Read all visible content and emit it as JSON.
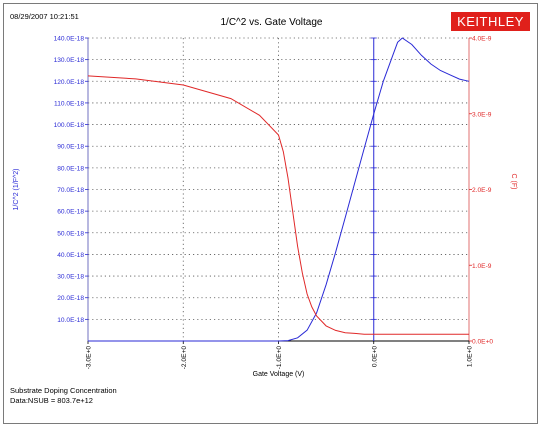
{
  "header": {
    "timestamp": "08/29/2007 10:21:51",
    "brand": "KEITHLEY"
  },
  "footer": {
    "line1": "Substrate Doping Concentration",
    "line2": "Data:NSUB = 803.7e+12"
  },
  "colors": {
    "left_series": "#2a2ad6",
    "right_series": "#e02828",
    "grid": "#555555",
    "zero_line": "#2a2ad6"
  },
  "chart_data": {
    "type": "line",
    "title": "1/C^2 vs. Gate Voltage",
    "xlabel": "Gate Voltage (V)",
    "ylabel_left": "1/C^2 (1/F^2)",
    "ylabel_right": "C (F)",
    "xlim": [
      -3,
      1
    ],
    "ylim_left": [
      0,
      1.4e-16
    ],
    "ylim_right": [
      0,
      4e-09
    ],
    "grid": true,
    "x_ticks": [
      -3,
      -2,
      -1,
      0,
      1
    ],
    "x_tick_labels": [
      "-3.0E+0",
      "-2.0E+0",
      "-1.0E+0",
      "0.0E+0",
      "1.0E+0"
    ],
    "y_left_ticks": [
      1e-17,
      2e-17,
      3e-17,
      4e-17,
      5e-17,
      6e-17,
      7e-17,
      8e-17,
      9e-17,
      1e-16,
      1.1e-16,
      1.2e-16,
      1.3e-16,
      1.4e-16
    ],
    "y_left_tick_labels": [
      "10.0E-18",
      "20.0E-18",
      "30.0E-18",
      "40.0E-18",
      "50.0E-18",
      "60.0E-18",
      "70.0E-18",
      "80.0E-18",
      "90.0E-18",
      "100.0E-18",
      "110.0E-18",
      "120.0E-18",
      "130.0E-18",
      "140.0E-18"
    ],
    "y_right_ticks": [
      0,
      1e-09,
      2e-09,
      3e-09,
      4e-09
    ],
    "y_right_tick_labels": [
      "0.0E+0",
      "1.0E-9",
      "2.0E-9",
      "3.0E-9",
      "4.0E-9"
    ],
    "series": [
      {
        "axis": "left",
        "x": [
          -3.0,
          -1.0,
          -0.9,
          -0.8,
          -0.7,
          -0.6,
          -0.5,
          -0.4,
          -0.3,
          -0.2,
          -0.1,
          0.0,
          0.1,
          0.2,
          0.25,
          0.3,
          0.4,
          0.5,
          0.6,
          0.7,
          0.8,
          0.9,
          1.0
        ],
        "y": [
          0,
          0,
          2e-19,
          1.5e-18,
          5e-18,
          1.3e-17,
          2.6e-17,
          4.1e-17,
          5.7e-17,
          7.3e-17,
          8.9e-17,
          1.05e-16,
          1.2e-16,
          1.32e-16,
          1.38e-16,
          1.4e-16,
          1.37e-16,
          1.32e-16,
          1.28e-16,
          1.25e-16,
          1.23e-16,
          1.21e-16,
          1.2e-16
        ]
      },
      {
        "axis": "right",
        "x": [
          -3.0,
          -2.5,
          -2.0,
          -1.5,
          -1.2,
          -1.0,
          -0.95,
          -0.9,
          -0.85,
          -0.8,
          -0.75,
          -0.7,
          -0.65,
          -0.6,
          -0.5,
          -0.4,
          -0.3,
          -0.2,
          -0.1,
          0.0,
          0.5,
          1.0
        ],
        "y": [
          3.5e-09,
          3.46e-09,
          3.38e-09,
          3.2e-09,
          2.98e-09,
          2.72e-09,
          2.5e-09,
          2.15e-09,
          1.7e-09,
          1.25e-09,
          9e-10,
          6.2e-10,
          4.5e-10,
          3.3e-10,
          2e-10,
          1.4e-10,
          1.1e-10,
          1e-10,
          9e-11,
          9e-11,
          9e-11,
          9e-11
        ]
      }
    ]
  }
}
